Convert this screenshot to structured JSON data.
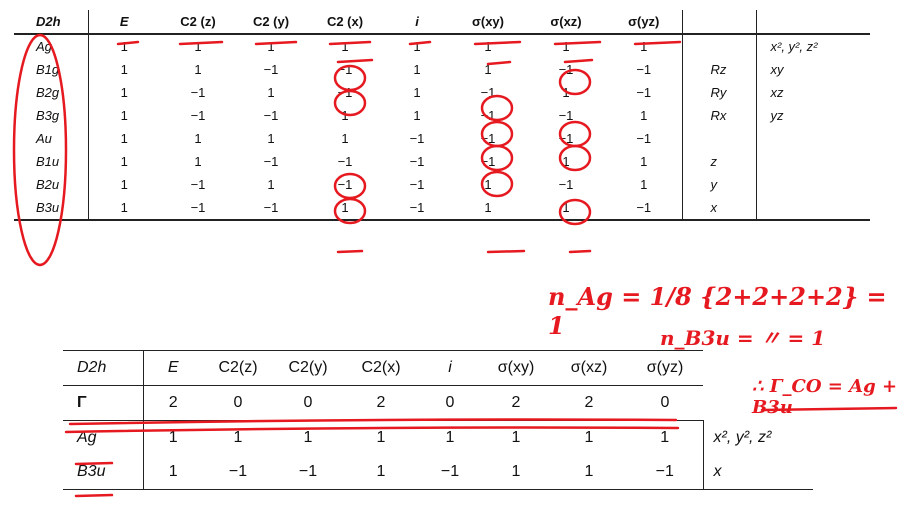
{
  "table1": {
    "header": [
      "D2h",
      "E",
      "C2 (z)",
      "C2 (y)",
      "C2 (x)",
      "i",
      "σ(xy)",
      "σ(xz)",
      "σ(yz)",
      "",
      ""
    ],
    "rows": [
      {
        "sym": "Ag",
        "chars": [
          "1",
          "1",
          "1",
          "1",
          "1",
          "1",
          "1",
          "1"
        ],
        "lin": "",
        "quad": "x², y², z²"
      },
      {
        "sym": "B1g",
        "chars": [
          "1",
          "1",
          "−1",
          "−1",
          "1",
          "1",
          "−1",
          "−1"
        ],
        "lin": "Rz",
        "quad": "xy"
      },
      {
        "sym": "B2g",
        "chars": [
          "1",
          "−1",
          "1",
          "−1",
          "1",
          "−1",
          "1",
          "−1"
        ],
        "lin": "Ry",
        "quad": "xz"
      },
      {
        "sym": "B3g",
        "chars": [
          "1",
          "−1",
          "−1",
          "1",
          "1",
          "−1",
          "−1",
          "1"
        ],
        "lin": "Rx",
        "quad": "yz"
      },
      {
        "sym": "Au",
        "chars": [
          "1",
          "1",
          "1",
          "1",
          "−1",
          "−1",
          "−1",
          "−1"
        ],
        "lin": "",
        "quad": ""
      },
      {
        "sym": "B1u",
        "chars": [
          "1",
          "1",
          "−1",
          "−1",
          "−1",
          "−1",
          "1",
          "1"
        ],
        "lin": "z",
        "quad": ""
      },
      {
        "sym": "B2u",
        "chars": [
          "1",
          "−1",
          "1",
          "−1",
          "−1",
          "1",
          "−1",
          "1"
        ],
        "lin": "y",
        "quad": ""
      },
      {
        "sym": "B3u",
        "chars": [
          "1",
          "−1",
          "−1",
          "1",
          "−1",
          "1",
          "1",
          "−1"
        ],
        "lin": "x",
        "quad": ""
      }
    ]
  },
  "table2": {
    "header": [
      "D2h",
      "E",
      "C2(z)",
      "C2(y)",
      "C2(x)",
      "i",
      "σ(xy)",
      "σ(xz)",
      "σ(yz)"
    ],
    "gamma": {
      "label": "Γ",
      "chars": [
        "2",
        "0",
        "0",
        "2",
        "0",
        "2",
        "2",
        "0"
      ]
    },
    "rows": [
      {
        "sym": "Ag",
        "chars": [
          "1",
          "1",
          "1",
          "1",
          "1",
          "1",
          "1",
          "1"
        ],
        "basis": "x², y², z²"
      },
      {
        "sym": "B3u",
        "chars": [
          "1",
          "−1",
          "−1",
          "1",
          "−1",
          "1",
          "1",
          "−1"
        ],
        "basis": "x"
      }
    ]
  },
  "handwriting": {
    "line1": "n_Ag = 1/8 {2+2+2+2} = 1",
    "line2": "n_B3u = 〃 = 1",
    "line3": "∴ Γ_CO = Ag + B3u"
  },
  "colors": {
    "ink": "#e5191f",
    "text": "#111111"
  }
}
